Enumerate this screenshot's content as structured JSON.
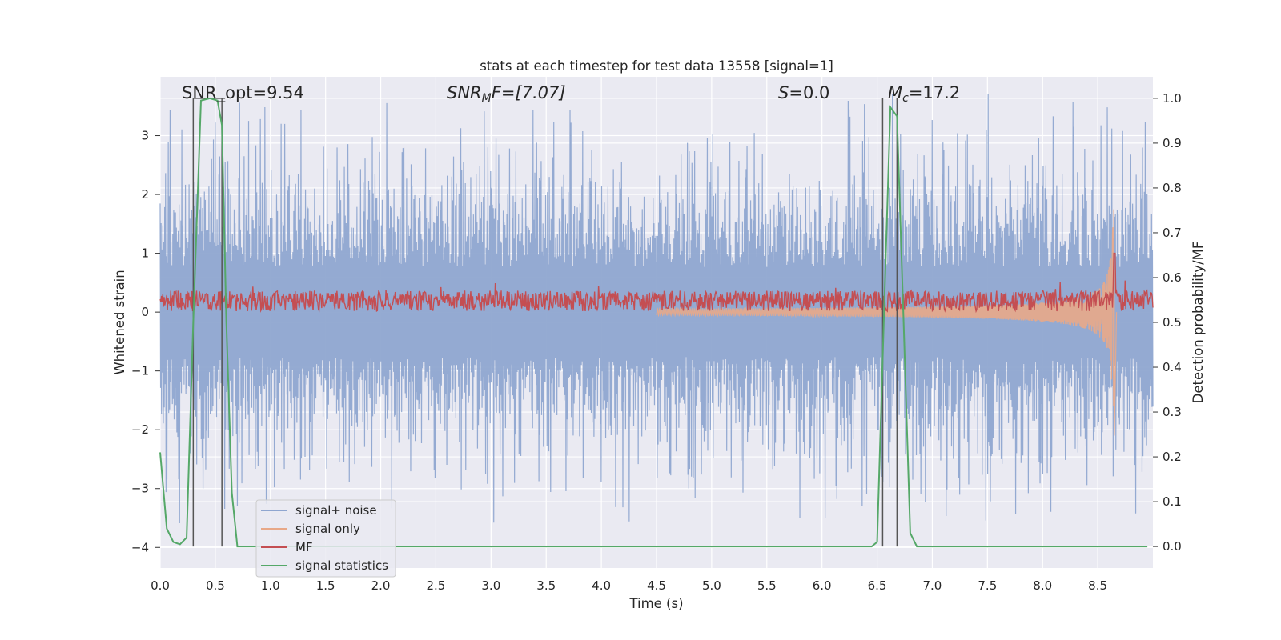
{
  "chart_data": {
    "type": "line",
    "title": "stats at each timestep for test data 13558 [signal=1]",
    "xlabel": "Time (s)",
    "ylabel": "Whitened strain",
    "ylabel_right": "Detection probability/MF",
    "xlim": [
      0.0,
      9.0
    ],
    "ylim": [
      -4.35,
      4.0
    ],
    "ylim_right": [
      -0.048,
      1.048
    ],
    "xticks": [
      "0.0",
      "0.5",
      "1.0",
      "1.5",
      "2.0",
      "2.5",
      "3.0",
      "3.5",
      "4.0",
      "4.5",
      "5.0",
      "5.5",
      "6.0",
      "6.5",
      "7.0",
      "7.5",
      "8.0",
      "8.5"
    ],
    "yticks": [
      "-4",
      "-3",
      "-2",
      "-1",
      "0",
      "1",
      "2",
      "3"
    ],
    "yticks_right": [
      "0.0",
      "0.1",
      "0.2",
      "0.3",
      "0.4",
      "0.5",
      "0.6",
      "0.7",
      "0.8",
      "0.9",
      "1.0"
    ],
    "annotations": {
      "snr_opt": "SNR_opt=9.54",
      "snr_mf_base": "SNR",
      "snr_mf_sub": "M",
      "snr_mf_rest": "F=[7.07]",
      "s_var": "S",
      "s_rest": "=0.0",
      "mc_base": "M",
      "mc_sub": "c",
      "mc_rest": "=17.2"
    },
    "legend": {
      "position": "lower-left",
      "entries": [
        "signal+ noise",
        "signal only",
        "MF",
        "signal statistics"
      ]
    },
    "colors": {
      "noise": "#8fa6d0",
      "signal": "#e8a888",
      "mf": "#c44e52",
      "stat": "#55a868",
      "bg": "#eaeaf2",
      "grid": "#ffffff",
      "vline": "#555555"
    },
    "noise": {
      "envelope": 1.7,
      "peak_max": 3.7,
      "trough_min": -4.0,
      "samples": 2200
    },
    "signal_chirp": {
      "t_merger": 8.65,
      "peak_amplitude": 1.75,
      "trough_min": -2.1
    },
    "mf": {
      "baseline": 0.12,
      "spread": 0.35,
      "peak": 1.0,
      "t_peak": 8.65
    },
    "vlines": [
      0.3,
      0.56,
      6.55,
      6.68
    ],
    "signal_statistics": {
      "x": [
        0.0,
        0.06,
        0.12,
        0.18,
        0.24,
        0.3,
        0.37,
        0.45,
        0.52,
        0.56,
        0.6,
        0.65,
        0.7,
        0.76,
        0.85,
        1.0,
        6.4,
        6.45,
        6.5,
        6.56,
        6.62,
        6.68,
        6.74,
        6.8,
        6.86,
        6.9,
        7.0,
        8.95
      ],
      "y": [
        0.21,
        0.04,
        0.01,
        0.005,
        0.02,
        0.5,
        0.995,
        1.0,
        0.995,
        0.94,
        0.5,
        0.12,
        0.0,
        0.0,
        0.0,
        0.0,
        0.0,
        0.0,
        0.01,
        0.5,
        0.98,
        0.96,
        0.5,
        0.03,
        0.0,
        0.0,
        0.0,
        0.0
      ]
    }
  }
}
